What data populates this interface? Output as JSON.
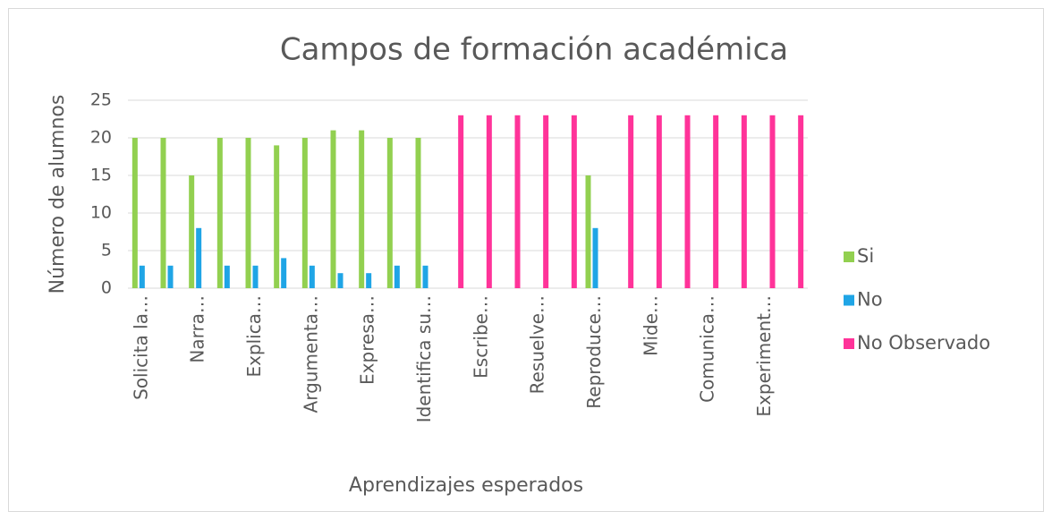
{
  "chart_data": {
    "type": "bar",
    "title": "Campos de formación académica",
    "x_label": "Aprendizajes esperados",
    "y_label": "Número de alumnos",
    "categories": [
      "Solicita la…",
      null,
      "Narra…",
      null,
      "Explica…",
      null,
      "Argumenta…",
      null,
      "Expresa…",
      null,
      "Identifica su…",
      null,
      "Escribe…",
      null,
      "Resuelve…",
      null,
      "Reproduce…",
      null,
      "Mide…",
      null,
      "Comunica…",
      null,
      "Experiment…",
      null
    ],
    "series": [
      {
        "name": "Si",
        "color": "#92d050",
        "values": [
          20,
          20,
          15,
          20,
          20,
          19,
          20,
          21,
          21,
          20,
          20,
          0,
          0,
          0,
          0,
          0,
          15,
          0,
          0,
          0,
          0,
          0,
          0,
          0
        ]
      },
      {
        "name": "No",
        "color": "#1fa5e6",
        "values": [
          3,
          3,
          8,
          3,
          3,
          4,
          3,
          2,
          2,
          3,
          3,
          0,
          0,
          0,
          0,
          0,
          8,
          0,
          0,
          0,
          0,
          0,
          0,
          0
        ]
      },
      {
        "name": "No Observado",
        "color": "#ff3399",
        "values": [
          0,
          0,
          0,
          0,
          0,
          0,
          0,
          0,
          0,
          0,
          0,
          23,
          23,
          23,
          23,
          23,
          0,
          23,
          23,
          23,
          23,
          23,
          23,
          23
        ]
      }
    ],
    "ylim": [
      0,
      25
    ],
    "yticks": [
      0,
      5,
      10,
      15,
      20,
      25
    ],
    "grid": true,
    "legend": "right"
  }
}
